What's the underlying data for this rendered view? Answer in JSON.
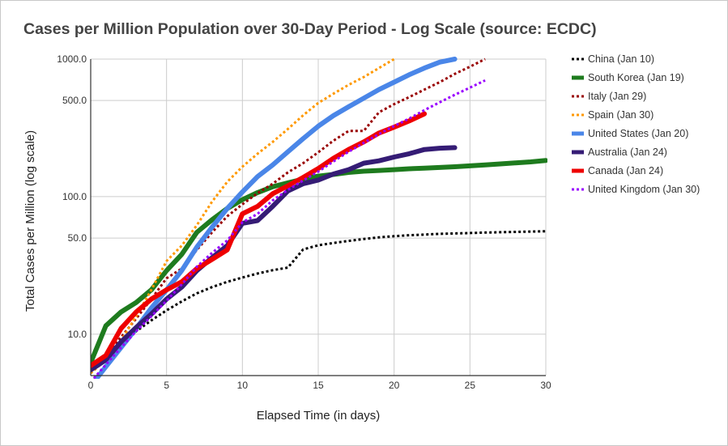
{
  "chart_data": {
    "type": "line",
    "title": "Cases per Million Population over 30-Day Period - Log Scale (source: ECDC)",
    "xlabel": "Elapsed Time (in days)",
    "ylabel": "Total Cases per Million (log scale)",
    "xlim": [
      0,
      30
    ],
    "ylim": [
      5,
      1000
    ],
    "y_scale": "log",
    "x_ticks": [
      0,
      5,
      10,
      15,
      20,
      25,
      30
    ],
    "x_tick_labels": [
      "0",
      "5",
      "10",
      "15",
      "20",
      "25",
      "30"
    ],
    "y_ticks": [
      10,
      50,
      100,
      500,
      1000
    ],
    "y_tick_labels": [
      "10.0",
      "50.0",
      "100.0",
      "500.0",
      "1000.0"
    ],
    "grid": true,
    "legend_position": "right",
    "series": [
      {
        "name": "China (Jan 10)",
        "color": "#000000",
        "style": "dotted",
        "x": [
          0,
          1,
          2,
          3,
          4,
          5,
          6,
          7,
          8,
          9,
          10,
          11,
          12,
          13,
          14,
          15,
          16,
          17,
          18,
          19,
          20,
          21,
          22,
          23,
          24,
          25,
          26,
          27,
          28,
          29,
          30
        ],
        "y": [
          5.5,
          6.8,
          8.6,
          10.5,
          12.6,
          14.9,
          17.3,
          19.8,
          22.0,
          24.0,
          25.8,
          27.6,
          29.2,
          30.5,
          41.3,
          44.3,
          46.0,
          47.7,
          49.2,
          50.6,
          51.6,
          52.4,
          53.0,
          53.6,
          54.0,
          54.4,
          54.8,
          55.1,
          55.4,
          55.7,
          56.0
        ]
      },
      {
        "name": "South Korea (Jan 19)",
        "color": "#1e7b1e",
        "style": "solid",
        "x": [
          0,
          1,
          2,
          3,
          4,
          5,
          6,
          7,
          8,
          9,
          10,
          11,
          12,
          13,
          14,
          15,
          16,
          17,
          18,
          19,
          20,
          21,
          22,
          23,
          24,
          25,
          26,
          27,
          28,
          29,
          30
        ],
        "y": [
          6.2,
          11.5,
          14.5,
          17.0,
          21.0,
          29.0,
          38.0,
          55.0,
          68.0,
          82.0,
          95.0,
          107.0,
          118.0,
          126.0,
          134.0,
          141.0,
          145.0,
          150.0,
          153.0,
          155.0,
          157.0,
          159.5,
          161.0,
          163.0,
          165.0,
          167.5,
          170.0,
          173.0,
          176.0,
          179.0,
          183.0
        ]
      },
      {
        "name": "Italy (Jan 29)",
        "color": "#990000",
        "style": "dotted",
        "x": [
          0,
          1,
          2,
          3,
          4,
          5,
          6,
          7,
          8,
          9,
          10,
          11,
          12,
          13,
          14,
          15,
          16,
          17,
          18,
          19,
          20,
          21,
          22,
          23,
          24,
          25,
          26
        ],
        "y": [
          5.8,
          7.2,
          9.5,
          13.0,
          18.0,
          25.5,
          30.0,
          41.0,
          55.0,
          72.0,
          88.0,
          106.0,
          124.0,
          150.0,
          175.0,
          210.0,
          255.0,
          300.0,
          300.0,
          410.0,
          470.0,
          530.0,
          600.0,
          680.0,
          780.0,
          880.0,
          1000.0
        ]
      },
      {
        "name": "Spain (Jan 30)",
        "color": "#ff9900",
        "style": "dotted",
        "x": [
          0,
          1,
          2,
          3,
          4,
          5,
          6,
          7,
          8,
          9,
          10,
          11,
          12,
          13,
          14,
          15,
          16,
          17,
          18,
          19,
          20
        ],
        "y": [
          5.2,
          6.5,
          9.0,
          13.5,
          21.0,
          34.0,
          44.0,
          62.0,
          92.0,
          128.0,
          165.0,
          205.0,
          250.0,
          310.0,
          390.0,
          480.0,
          560.0,
          650.0,
          740.0,
          860.0,
          1000.0
        ]
      },
      {
        "name": "United States (Jan 20)",
        "color": "#4a86e8",
        "style": "solid",
        "x": [
          0,
          1,
          2,
          3,
          4,
          5,
          6,
          7,
          8,
          9,
          10,
          11,
          12,
          13,
          14,
          15,
          16,
          17,
          18,
          19,
          20,
          21,
          22,
          23,
          24
        ],
        "y": [
          4.2,
          5.8,
          8.0,
          11.0,
          15.5,
          21.0,
          29.0,
          43.0,
          60.0,
          82.0,
          108.0,
          140.0,
          170.0,
          212.0,
          264.0,
          325.0,
          388.0,
          450.0,
          520.0,
          600.0,
          680.0,
          770.0,
          860.0,
          950.0,
          1000.0
        ]
      },
      {
        "name": "Australia (Jan 24)",
        "color": "#351c75",
        "style": "solid",
        "x": [
          0,
          1,
          2,
          3,
          4,
          5,
          6,
          7,
          8,
          9,
          10,
          11,
          12,
          13,
          14,
          15,
          16,
          17,
          18,
          19,
          20,
          21,
          22,
          23,
          24
        ],
        "y": [
          5.5,
          6.5,
          8.8,
          11.2,
          14.0,
          18.0,
          22.0,
          29.0,
          36.0,
          44.0,
          64.0,
          67.0,
          85.0,
          110.0,
          124.0,
          132.0,
          146.0,
          157.0,
          175.0,
          182.0,
          194.0,
          205.0,
          220.0,
          225.0,
          227.0
        ]
      },
      {
        "name": "Canada (Jan 24)",
        "color": "#ee0000",
        "style": "solid",
        "x": [
          0,
          1,
          2,
          3,
          4,
          5,
          6,
          7,
          8,
          9,
          10,
          11,
          12,
          13,
          14,
          15,
          16,
          17,
          18,
          19,
          20,
          21,
          22
        ],
        "y": [
          5.9,
          7.0,
          11.0,
          14.5,
          18.0,
          21.0,
          24.0,
          30.0,
          35.0,
          41.0,
          75.0,
          85.0,
          105.0,
          120.0,
          138.0,
          160.0,
          190.0,
          220.0,
          250.0,
          290.0,
          320.0,
          355.0,
          400.0
        ]
      },
      {
        "name": "United Kingdom (Jan 30)",
        "color": "#9900ff",
        "style": "dotted",
        "x": [
          0,
          1,
          2,
          3,
          4,
          5,
          6,
          7,
          8,
          9,
          10,
          11,
          12,
          13,
          14,
          15,
          16,
          17,
          18,
          19,
          20,
          21,
          22,
          23,
          24,
          25,
          26
        ],
        "y": [
          4.5,
          6.0,
          8.0,
          10.5,
          13.5,
          17.5,
          23.0,
          31.0,
          39.0,
          48.0,
          65.0,
          75.0,
          94.0,
          112.0,
          131.0,
          152.0,
          180.0,
          212.0,
          246.0,
          285.0,
          326.0,
          370.0,
          425.0,
          485.0,
          550.0,
          620.0,
          700.0
        ]
      }
    ]
  }
}
